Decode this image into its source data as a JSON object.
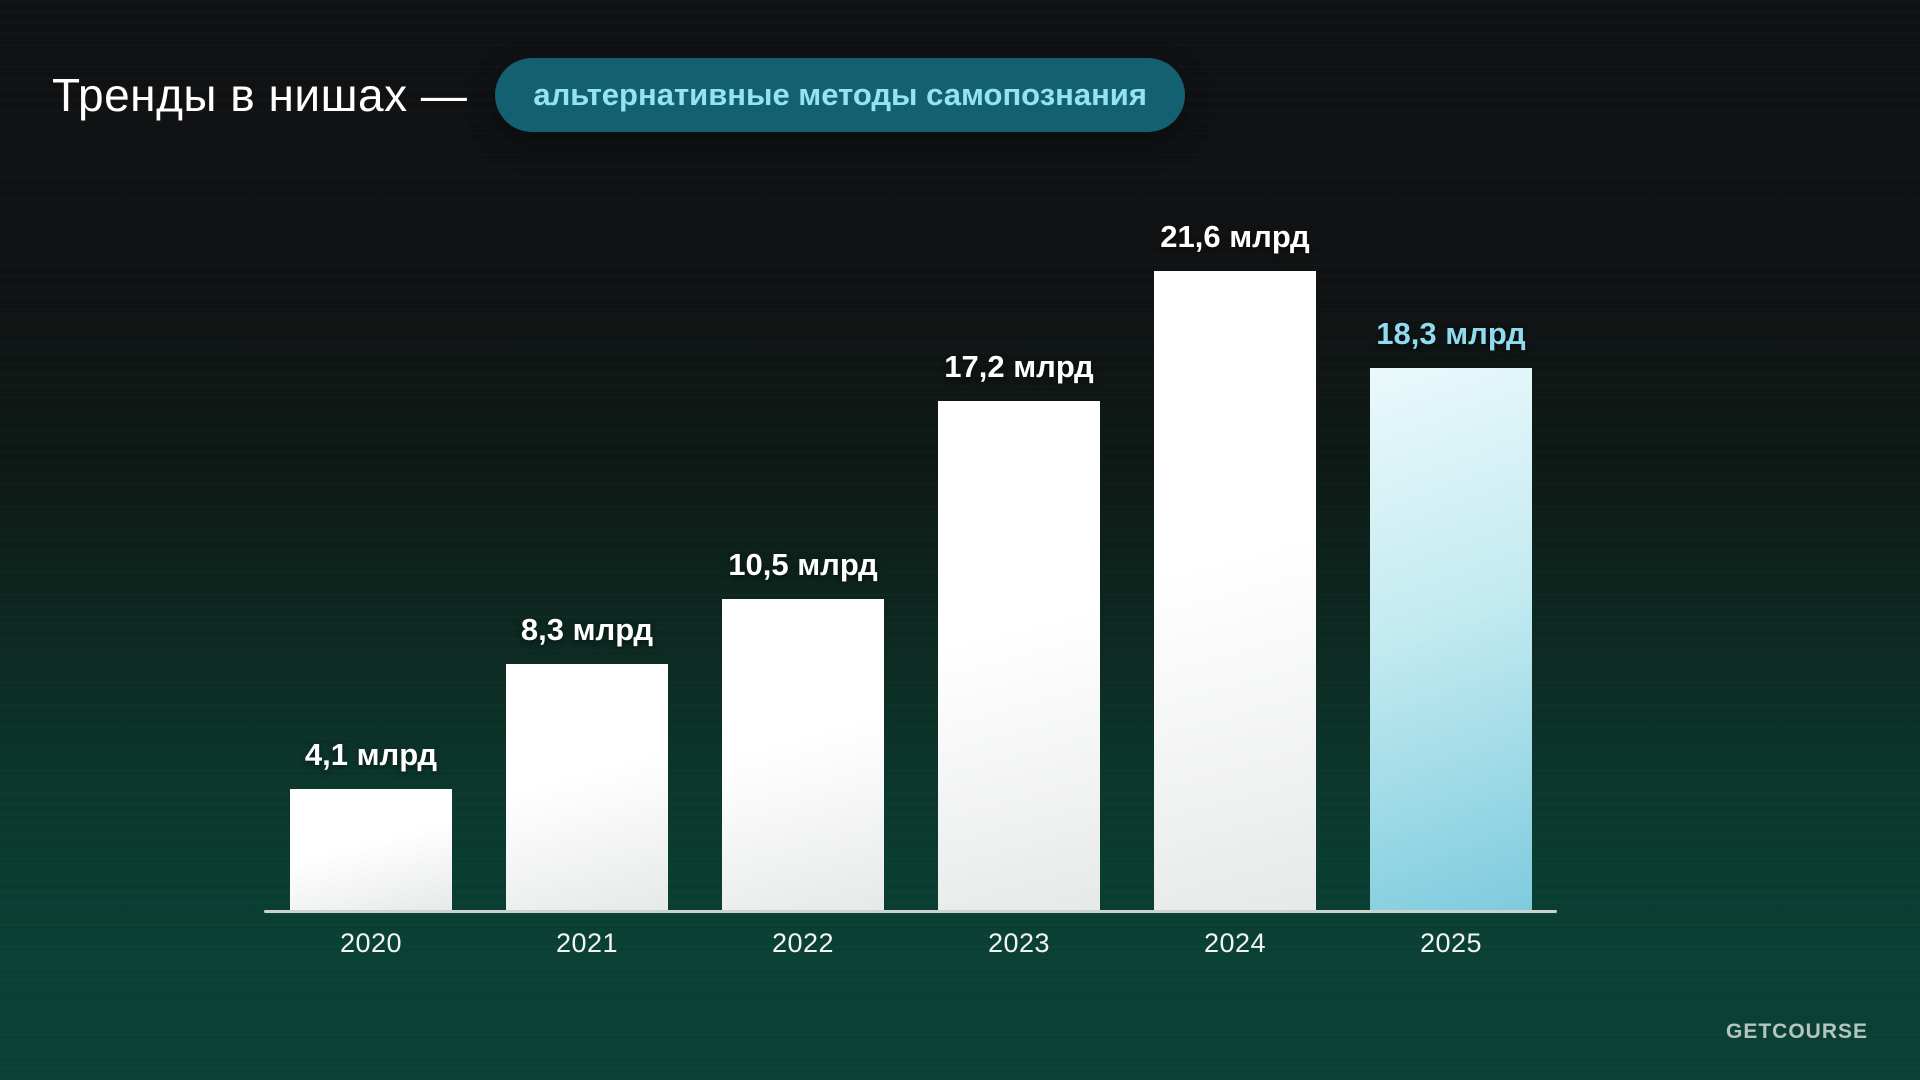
{
  "header": {
    "title": "Тренды в нишах —",
    "badge": "альтернативные методы самопознания"
  },
  "footer": {
    "logo": "GETCOURSE"
  },
  "colors": {
    "background_top": "#0f1113",
    "background_bottom": "#0a4134",
    "bar": "#ffffff",
    "bar_gradient_end": "#e7e9e9",
    "highlight_bar_start": "#eaf9fb",
    "highlight_bar_end": "#7ecbdd",
    "highlight_label_text": "#8fdcef",
    "badge_bg": "#136070",
    "badge_text": "#93e4ef",
    "axis_line": "#c9d3d0",
    "value_label_text": "#ffffff",
    "year_label_text": "#f3f5f4",
    "logo_text": "#b5c4bf"
  },
  "chart_data": {
    "type": "bar",
    "title": "Тренды в нишах — альтернативные методы самопознания",
    "categories": [
      "2020",
      "2021",
      "2022",
      "2023",
      "2024",
      "2025"
    ],
    "values": [
      4.1,
      8.3,
      10.5,
      17.2,
      21.6,
      18.3
    ],
    "value_labels": [
      "4,1 млрд",
      "8,3 млрд",
      "10,5 млрд",
      "17,2 млрд",
      "21,6 млрд",
      "18,3 млрд"
    ],
    "unit": "млрд",
    "highlight_index": 5,
    "xlabel": "",
    "ylabel": "",
    "ylim": [
      0,
      22
    ],
    "grid": false,
    "legend": false
  }
}
